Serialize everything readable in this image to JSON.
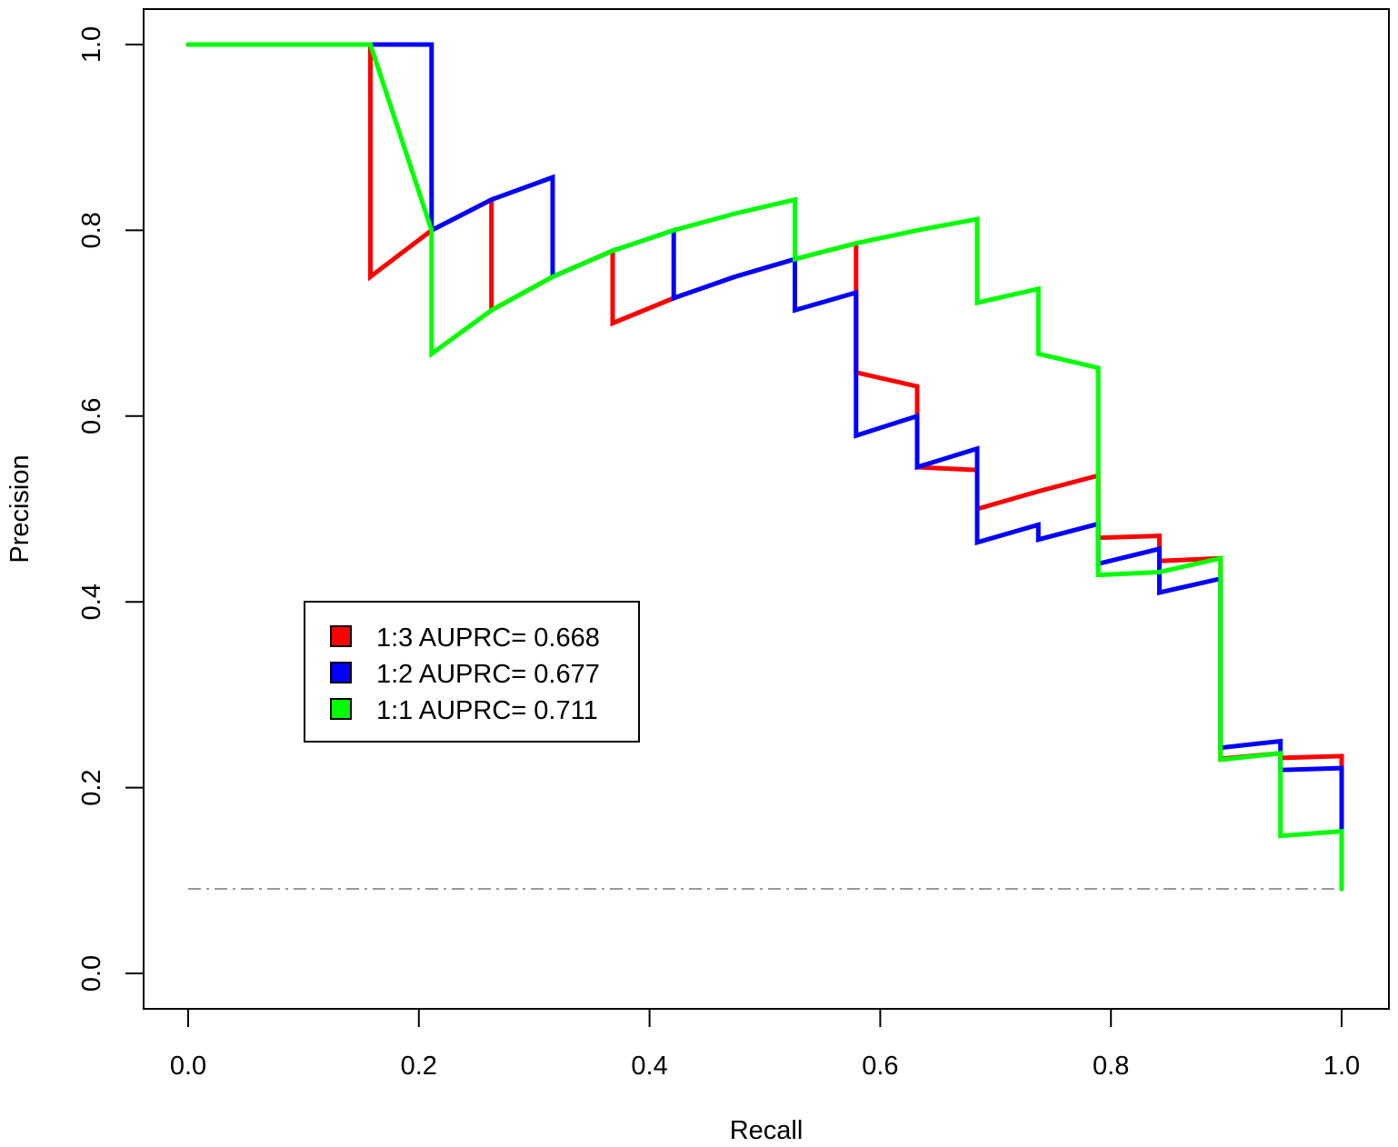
{
  "chart_data": {
    "type": "line",
    "title": "",
    "xlabel": "Recall",
    "ylabel": "Precision",
    "xlim": [
      0,
      1
    ],
    "ylim": [
      0,
      1
    ],
    "x_ticks": [
      "0.0",
      "0.2",
      "0.4",
      "0.6",
      "0.8",
      "1.0"
    ],
    "y_ticks": [
      "0.0",
      "0.2",
      "0.4",
      "0.6",
      "0.8",
      "1.0"
    ],
    "grid": false,
    "legend_position": "center-left",
    "baseline": {
      "y": 0.091,
      "color": "#999999",
      "style": "dash-dot"
    },
    "series": [
      {
        "name": "1:3 AUPRC= 0.668",
        "color": "#ff0000",
        "points": [
          [
            0,
            1
          ],
          [
            0.158,
            1
          ],
          [
            0.158,
            0.75
          ],
          [
            0.211,
            0.8
          ],
          [
            0.211,
            0.8
          ],
          [
            0.263,
            0.833
          ],
          [
            0.263,
            0.714
          ],
          [
            0.316,
            0.75
          ],
          [
            0.368,
            0.778
          ],
          [
            0.368,
            0.7
          ],
          [
            0.421,
            0.727
          ],
          [
            0.474,
            0.75
          ],
          [
            0.526,
            0.769
          ],
          [
            0.579,
            0.786
          ],
          [
            0.579,
            0.647
          ],
          [
            0.632,
            0.632
          ],
          [
            0.632,
            0.545
          ],
          [
            0.684,
            0.542
          ],
          [
            0.684,
            0.5
          ],
          [
            0.737,
            0.519
          ],
          [
            0.789,
            0.536
          ],
          [
            0.789,
            0.469
          ],
          [
            0.842,
            0.471
          ],
          [
            0.842,
            0.444
          ],
          [
            0.895,
            0.447
          ],
          [
            0.895,
            0.231
          ],
          [
            0.947,
            0.237
          ],
          [
            0.947,
            0.232
          ],
          [
            1.0,
            0.234
          ],
          [
            1.0,
            0.091
          ]
        ]
      },
      {
        "name": "1:2 AUPRC= 0.677",
        "color": "#0000ff",
        "points": [
          [
            0,
            1
          ],
          [
            0.211,
            1
          ],
          [
            0.211,
            0.8
          ],
          [
            0.263,
            0.833
          ],
          [
            0.316,
            0.857
          ],
          [
            0.316,
            0.75
          ],
          [
            0.368,
            0.778
          ],
          [
            0.421,
            0.8
          ],
          [
            0.421,
            0.727
          ],
          [
            0.474,
            0.75
          ],
          [
            0.526,
            0.769
          ],
          [
            0.526,
            0.714
          ],
          [
            0.579,
            0.733
          ],
          [
            0.579,
            0.579
          ],
          [
            0.632,
            0.6
          ],
          [
            0.632,
            0.545
          ],
          [
            0.684,
            0.565
          ],
          [
            0.684,
            0.464
          ],
          [
            0.737,
            0.483
          ],
          [
            0.737,
            0.467
          ],
          [
            0.789,
            0.484
          ],
          [
            0.789,
            0.441
          ],
          [
            0.842,
            0.457
          ],
          [
            0.842,
            0.41
          ],
          [
            0.895,
            0.425
          ],
          [
            0.895,
            0.243
          ],
          [
            0.947,
            0.25
          ],
          [
            0.947,
            0.219
          ],
          [
            1.0,
            0.221
          ],
          [
            1.0,
            0.091
          ]
        ]
      },
      {
        "name": "1:1 AUPRC= 0.711",
        "color": "#00ff00",
        "points": [
          [
            0,
            1
          ],
          [
            0.158,
            1
          ],
          [
            0.211,
            0.8
          ],
          [
            0.211,
            0.667
          ],
          [
            0.263,
            0.714
          ],
          [
            0.316,
            0.75
          ],
          [
            0.368,
            0.778
          ],
          [
            0.421,
            0.8
          ],
          [
            0.474,
            0.818
          ],
          [
            0.526,
            0.833
          ],
          [
            0.526,
            0.769
          ],
          [
            0.579,
            0.786
          ],
          [
            0.632,
            0.8
          ],
          [
            0.684,
            0.812
          ],
          [
            0.684,
            0.722
          ],
          [
            0.737,
            0.737
          ],
          [
            0.737,
            0.667
          ],
          [
            0.789,
            0.652
          ],
          [
            0.789,
            0.429
          ],
          [
            0.842,
            0.432
          ],
          [
            0.895,
            0.447
          ],
          [
            0.895,
            0.23
          ],
          [
            0.947,
            0.237
          ],
          [
            0.947,
            0.148
          ],
          [
            1.0,
            0.153
          ],
          [
            1.0,
            0.091
          ]
        ]
      }
    ]
  }
}
